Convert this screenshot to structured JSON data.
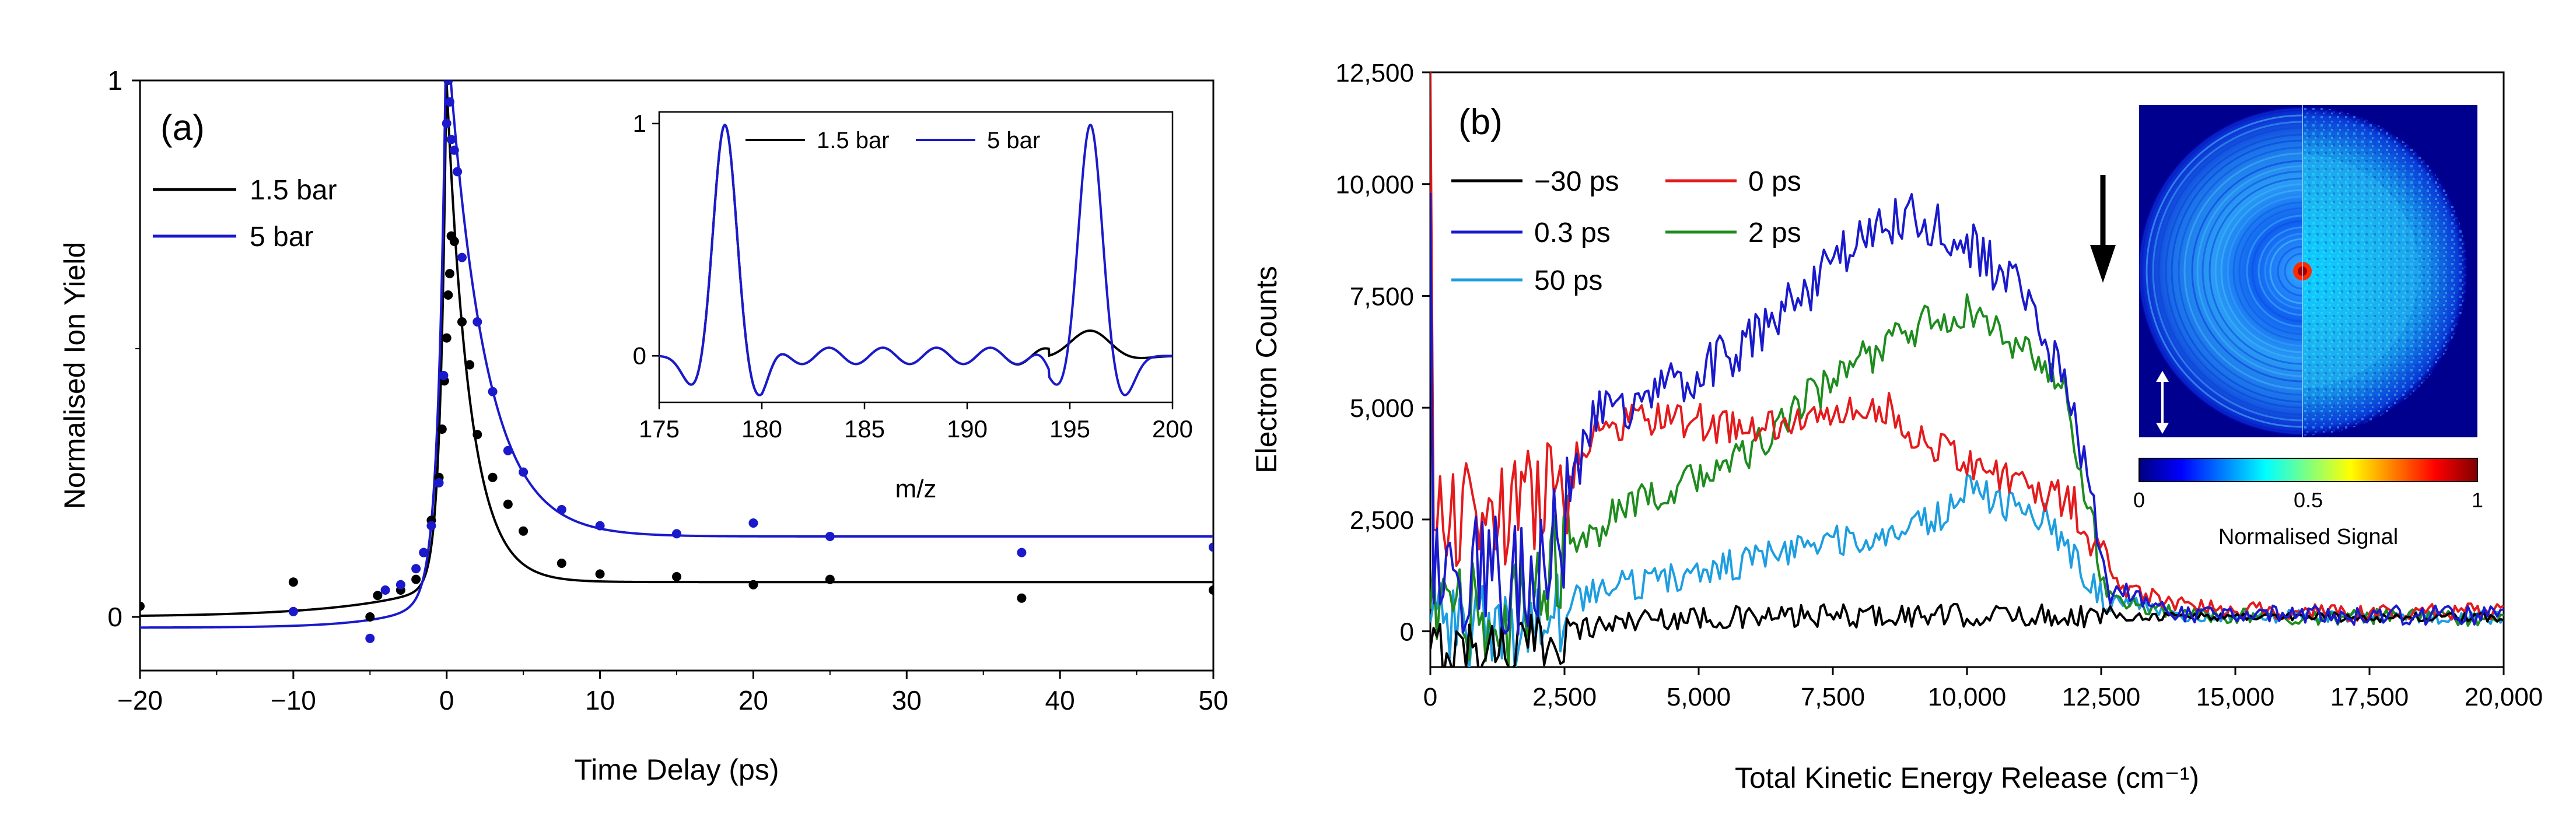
{
  "chart_data": [
    {
      "panel": "(a)",
      "type": "scatter",
      "xlabel": "Time Delay (ps)",
      "ylabel": "Normalised Ion Yield",
      "xlim": [
        -20,
        50
      ],
      "ylim": [
        -0.1,
        1
      ],
      "xticks": [
        "-20",
        "-10",
        "0",
        "10",
        "20",
        "30",
        "40",
        "50"
      ],
      "yticks": [
        "0",
        "1"
      ],
      "series": [
        {
          "name": "1.5 bar",
          "color": "#000000",
          "points": [
            [
              -20,
              0.02
            ],
            [
              -10,
              0.065
            ],
            [
              -5,
              0.0
            ],
            [
              -4.5,
              0.04
            ],
            [
              -3,
              0.05
            ],
            [
              -2,
              0.07
            ],
            [
              -1.5,
              0.12
            ],
            [
              -1,
              0.18
            ],
            [
              -0.5,
              0.26
            ],
            [
              -0.3,
              0.35
            ],
            [
              -0.15,
              0.44
            ],
            [
              0,
              0.52
            ],
            [
              0.1,
              0.6
            ],
            [
              0.2,
              0.64
            ],
            [
              0.3,
              0.71
            ],
            [
              0.5,
              0.7
            ],
            [
              1,
              0.55
            ],
            [
              1.5,
              0.47
            ],
            [
              2,
              0.34
            ],
            [
              3,
              0.26
            ],
            [
              4,
              0.21
            ],
            [
              5,
              0.16
            ],
            [
              7.5,
              0.1
            ],
            [
              10,
              0.08
            ],
            [
              15,
              0.075
            ],
            [
              20,
              0.06
            ],
            [
              25,
              0.07
            ],
            [
              37.5,
              0.035
            ],
            [
              50,
              0.05
            ]
          ],
          "fit": {
            "baseline": 0.065,
            "y0": 0.0,
            "peak": 0.93,
            "tau_rise": 0.4,
            "tau_decay": 1.5,
            "tau_pre": 6
          }
        },
        {
          "name": "5 bar",
          "color": "#1a1acc",
          "points": [
            [
              -10,
              0.01
            ],
            [
              -5,
              -0.04
            ],
            [
              -4,
              0.05
            ],
            [
              -3,
              0.06
            ],
            [
              -2,
              0.09
            ],
            [
              -1.5,
              0.12
            ],
            [
              -1,
              0.17
            ],
            [
              -0.5,
              0.25
            ],
            [
              -0.2,
              0.45
            ],
            [
              0,
              0.92
            ],
            [
              0.1,
              1.0
            ],
            [
              0.2,
              0.96
            ],
            [
              0.3,
              0.89
            ],
            [
              0.5,
              0.87
            ],
            [
              0.7,
              0.83
            ],
            [
              1,
              0.67
            ],
            [
              2,
              0.55
            ],
            [
              3,
              0.42
            ],
            [
              4,
              0.31
            ],
            [
              5,
              0.27
            ],
            [
              7.5,
              0.2
            ],
            [
              10,
              0.17
            ],
            [
              15,
              0.155
            ],
            [
              20,
              0.175
            ],
            [
              25,
              0.15
            ],
            [
              37.5,
              0.12
            ],
            [
              50,
              0.13
            ]
          ],
          "fit": {
            "baseline": 0.15,
            "y0": -0.02,
            "peak": 0.95,
            "tau_rise": 0.5,
            "tau_decay": 2.4,
            "tau_pre": 3.5
          }
        }
      ],
      "legend": [
        "1.5 bar",
        "5 bar"
      ],
      "inset": {
        "type": "line",
        "xlabel": "m/z",
        "xlim": [
          175,
          200
        ],
        "ylim": [
          -0.2,
          1.05
        ],
        "xticks": [
          "175",
          "180",
          "185",
          "190",
          "195",
          "200"
        ],
        "yticks": [
          "0",
          "1"
        ],
        "legend": [
          "1.5 bar",
          "5 bar"
        ],
        "series": [
          {
            "name": "1.5 bar",
            "color": "#000000",
            "peaks": [
              [
                178.2,
                1.0,
                0.55
              ],
              [
                196,
                0.12,
                1.0
              ]
            ]
          },
          {
            "name": "5 bar",
            "color": "#1a1acc",
            "peaks": [
              [
                178.2,
                1.0,
                0.55
              ],
              [
                196,
                1.0,
                0.55
              ]
            ]
          }
        ]
      }
    },
    {
      "panel": "(b)",
      "type": "line",
      "xlabel": "Total Kinetic Energy Release (cm⁻¹)",
      "ylabel": "Electron Counts",
      "xlim": [
        0,
        20000
      ],
      "ylim": [
        -800,
        12500
      ],
      "xticks": [
        "0",
        "2,500",
        "5,000",
        "7,500",
        "10,000",
        "12,500",
        "15,000",
        "17,500",
        "20,000"
      ],
      "yticks": [
        "0",
        "2,500",
        "5,000",
        "7,500",
        "10,000",
        "12,500"
      ],
      "legend": [
        "−30 ps",
        "0 ps",
        "0.3 ps",
        "2 ps",
        "50 ps"
      ],
      "series": [
        {
          "name": "−30 ps",
          "color": "#000000",
          "envelope": [
            [
              0,
              -400
            ],
            [
              2000,
              -300
            ],
            [
              2500,
              0
            ],
            [
              4000,
              300
            ],
            [
              6000,
              300
            ],
            [
              8000,
              350
            ],
            [
              10000,
              350
            ],
            [
              12500,
              350
            ],
            [
              20000,
              300
            ]
          ],
          "noise": 120
        },
        {
          "name": "0 ps",
          "color": "#e41a1c",
          "envelope": [
            [
              0,
              2500
            ],
            [
              1500,
              2700
            ],
            [
              2500,
              3200
            ],
            [
              3000,
              4500
            ],
            [
              4000,
              4800
            ],
            [
              6000,
              4500
            ],
            [
              7500,
              4800
            ],
            [
              8500,
              5000
            ],
            [
              9500,
              4000
            ],
            [
              10000,
              3900
            ],
            [
              11000,
              3300
            ],
            [
              12000,
              2800
            ],
            [
              12800,
              1000
            ],
            [
              14000,
              600
            ],
            [
              15000,
              500
            ],
            [
              17000,
              400
            ],
            [
              20000,
              450
            ]
          ],
          "noise": 200
        },
        {
          "name": "0.3 ps",
          "color": "#1a1acc",
          "envelope": [
            [
              0,
              1500
            ],
            [
              1500,
              1200
            ],
            [
              2500,
              2300
            ],
            [
              3000,
              4800
            ],
            [
              4000,
              5200
            ],
            [
              5000,
              5800
            ],
            [
              6000,
              6500
            ],
            [
              7000,
              7600
            ],
            [
              8000,
              8800
            ],
            [
              9000,
              9300
            ],
            [
              10000,
              8700
            ],
            [
              11000,
              7600
            ],
            [
              12000,
              5000
            ],
            [
              12600,
              1000
            ],
            [
              14000,
              400
            ],
            [
              20000,
              350
            ]
          ],
          "noise": 250
        },
        {
          "name": "2 ps",
          "color": "#1e8c1e",
          "envelope": [
            [
              0,
              500
            ],
            [
              1500,
              200
            ],
            [
              2500,
              1800
            ],
            [
              3500,
              2600
            ],
            [
              4500,
              3200
            ],
            [
              6000,
              4000
            ],
            [
              7000,
              5200
            ],
            [
              8000,
              6000
            ],
            [
              9000,
              6800
            ],
            [
              10000,
              7200
            ],
            [
              11000,
              6300
            ],
            [
              11800,
              5500
            ],
            [
              12600,
              800
            ],
            [
              14000,
              350
            ],
            [
              20000,
              300
            ]
          ],
          "noise": 200
        },
        {
          "name": "50 ps",
          "color": "#1e9ee0",
          "envelope": [
            [
              0,
              200
            ],
            [
              1500,
              0
            ],
            [
              2500,
              500
            ],
            [
              3000,
              900
            ],
            [
              5000,
              1300
            ],
            [
              7000,
              1900
            ],
            [
              8500,
              2200
            ],
            [
              9500,
              2600
            ],
            [
              10000,
              3300
            ],
            [
              10500,
              2900
            ],
            [
              11500,
              2500
            ],
            [
              12500,
              800
            ],
            [
              14000,
              350
            ],
            [
              20000,
              300
            ]
          ],
          "noise": 160
        }
      ],
      "inset": {
        "type": "image",
        "colorbar_label": "Normalised Signal",
        "colorbar_ticks": [
          "0",
          "0.5",
          "1"
        ]
      }
    }
  ]
}
